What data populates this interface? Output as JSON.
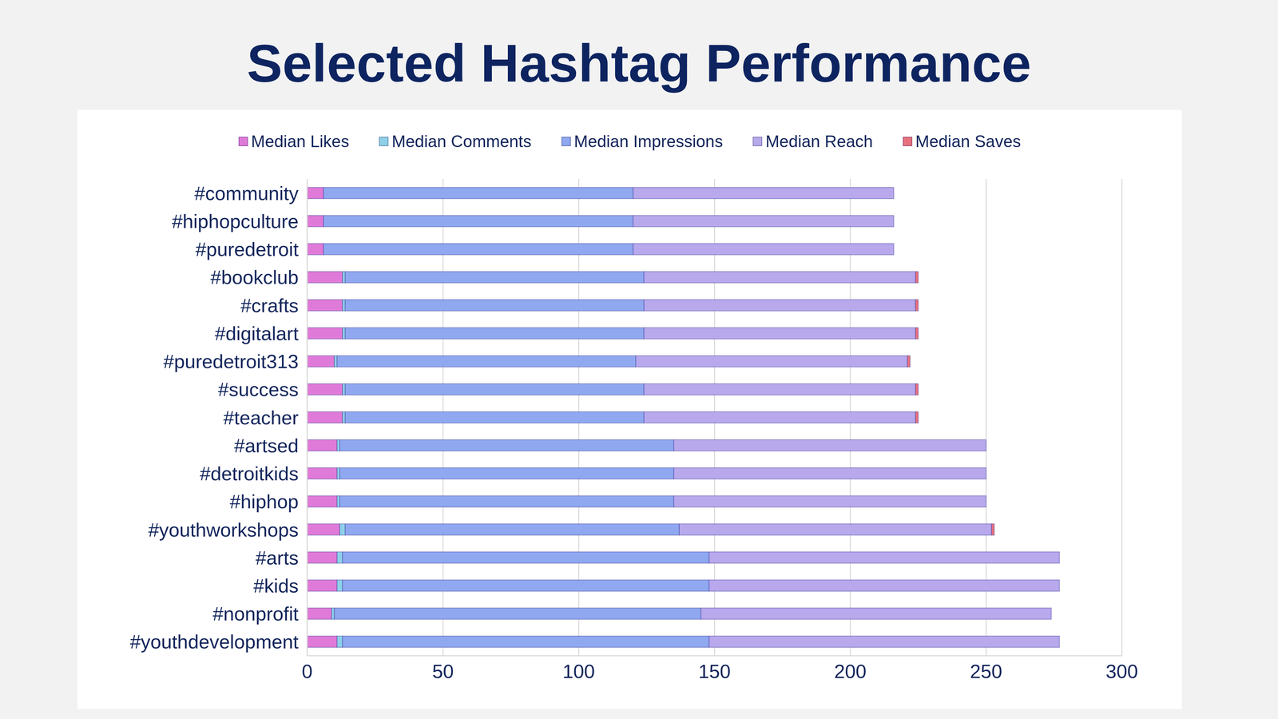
{
  "chart_data": {
    "type": "bar",
    "title": "Selected Hashtag Performance",
    "orientation": "horizontal",
    "stacked": true,
    "grid": true,
    "legend": "top",
    "categories": [
      "#community",
      "#hiphopculture",
      "#puredetroit",
      "#bookclub",
      "#crafts",
      "#digitalart",
      "#puredetroit313",
      "#success",
      "#teacher",
      "#artsed",
      "#detroitkids",
      "#hiphop",
      "#youthworkshops",
      "#arts",
      "#kids",
      "#nonprofit",
      "#youthdevelopment"
    ],
    "series": [
      {
        "name": "Median Likes",
        "color": "#e07ad8",
        "values": [
          6,
          6,
          6,
          13,
          13,
          13,
          10,
          13,
          13,
          11,
          11,
          11,
          12,
          11,
          11,
          9,
          11
        ]
      },
      {
        "name": "Median Comments",
        "color": "#8fd0e8",
        "values": [
          0,
          0,
          0,
          1,
          1,
          1,
          1,
          1,
          1,
          1,
          1,
          1,
          2,
          2,
          2,
          1,
          2
        ]
      },
      {
        "name": "Median Impressions",
        "color": "#8fa8f0",
        "values": [
          114,
          114,
          114,
          110,
          110,
          110,
          110,
          110,
          110,
          123,
          123,
          123,
          123,
          135,
          135,
          135,
          135
        ]
      },
      {
        "name": "Median Reach",
        "color": "#b8a8ec",
        "values": [
          96,
          96,
          96,
          100,
          100,
          100,
          100,
          100,
          100,
          115,
          115,
          115,
          115,
          129,
          129,
          129,
          129
        ]
      },
      {
        "name": "Median Saves",
        "color": "#e8707f",
        "values": [
          0,
          0,
          0,
          1,
          1,
          1,
          1,
          1,
          1,
          0,
          0,
          0,
          1,
          0,
          0,
          0,
          0
        ]
      }
    ],
    "xlim": [
      0,
      300
    ],
    "xticks": [
      0,
      50,
      100,
      150,
      200,
      250,
      300
    ]
  }
}
